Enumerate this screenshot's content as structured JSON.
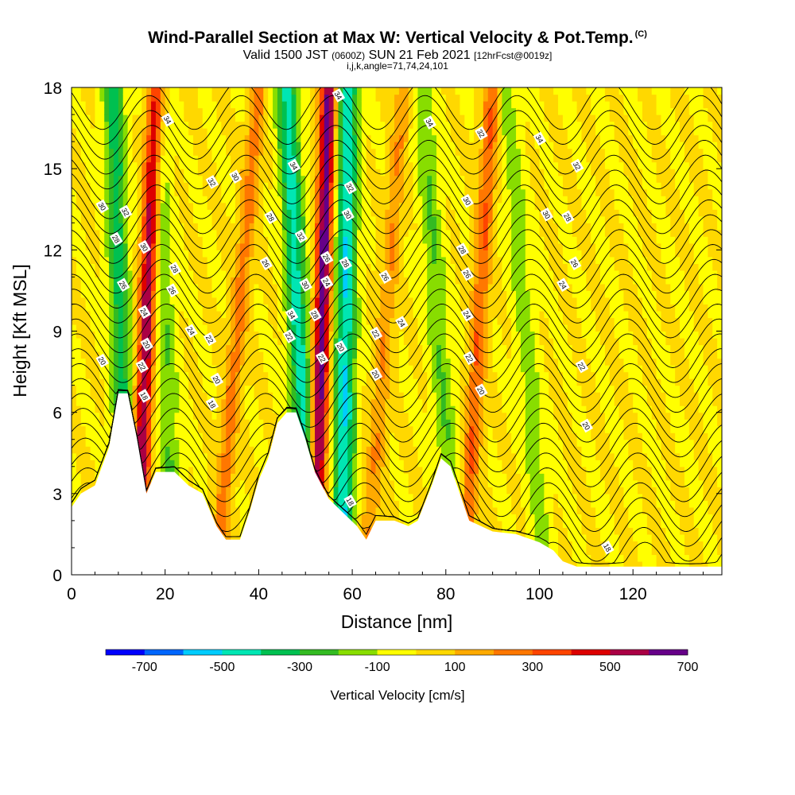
{
  "title": "Wind-Parallel Section at Max W: Vertical Velocity & Pot.Temp.",
  "title_mark": "(C)",
  "subtitle": {
    "valid": "Valid 1500 JST",
    "utc": "(0600Z)",
    "date": "SUN 21 Feb 2021",
    "fcst": "[12hrFcst@0019z]"
  },
  "params": "i,j,k,angle=71,74,24,101",
  "chart_data": {
    "type": "heatmap",
    "xlabel": "Distance [nm]",
    "ylabel": "Height [Kft MSL]",
    "xlim": [
      0,
      139
    ],
    "ylim": [
      0,
      18
    ],
    "x_ticks": [
      "0",
      "20",
      "40",
      "60",
      "80",
      "100",
      "120"
    ],
    "y_ticks": [
      "0",
      "3",
      "6",
      "9",
      "12",
      "15",
      "18"
    ],
    "colorbar": {
      "label": "Vertical Velocity [cm/s]",
      "tick_labels": [
        "-700",
        "-500",
        "-300",
        "-100",
        "100",
        "300",
        "500",
        "700"
      ],
      "tick_values": [
        -700,
        -500,
        -300,
        -100,
        100,
        300,
        500,
        700
      ],
      "colors": [
        "#0000ff",
        "#0066ff",
        "#00ccff",
        "#00e6b3",
        "#00c050",
        "#33bb22",
        "#88dd00",
        "#ffff00",
        "#ffd800",
        "#ffaa00",
        "#ff7700",
        "#ff4400",
        "#dd0000",
        "#aa0044",
        "#660088"
      ]
    },
    "terrain_height_kft": [
      [
        0,
        2.5
      ],
      [
        2,
        3.0
      ],
      [
        5,
        3.3
      ],
      [
        8,
        4.7
      ],
      [
        10,
        6.7
      ],
      [
        12,
        6.7
      ],
      [
        14,
        5.0
      ],
      [
        16,
        3.0
      ],
      [
        18,
        3.8
      ],
      [
        22,
        3.8
      ],
      [
        25,
        3.3
      ],
      [
        28,
        3.0
      ],
      [
        31,
        1.8
      ],
      [
        33,
        1.3
      ],
      [
        36,
        1.3
      ],
      [
        38,
        2.3
      ],
      [
        40,
        3.5
      ],
      [
        42,
        4.3
      ],
      [
        44,
        5.6
      ],
      [
        46,
        6.0
      ],
      [
        48,
        6.0
      ],
      [
        50,
        5.0
      ],
      [
        52,
        3.8
      ],
      [
        55,
        2.8
      ],
      [
        58,
        2.3
      ],
      [
        61,
        1.8
      ],
      [
        63,
        1.3
      ],
      [
        65,
        2.0
      ],
      [
        69,
        2.0
      ],
      [
        72,
        1.8
      ],
      [
        74,
        2.0
      ],
      [
        77,
        3.3
      ],
      [
        79,
        4.3
      ],
      [
        81,
        4.0
      ],
      [
        83,
        3.0
      ],
      [
        85,
        2.0
      ],
      [
        90,
        1.6
      ],
      [
        95,
        1.5
      ],
      [
        100,
        1.2
      ],
      [
        103,
        0.9
      ],
      [
        105,
        0.5
      ],
      [
        108,
        0.3
      ],
      [
        139,
        0.3
      ]
    ],
    "updraft_bands": [
      {
        "x_bottom": 14,
        "x_top": 18,
        "peak": 600
      },
      {
        "x_bottom": 31,
        "x_top": 40,
        "peak": 250
      },
      {
        "x_bottom": 52,
        "x_top": 55,
        "peak": 650
      },
      {
        "x_bottom": 63,
        "x_top": 71,
        "peak": 200
      },
      {
        "x_bottom": 84,
        "x_top": 90,
        "peak": 300
      }
    ],
    "downdraft_bands": [
      {
        "x_bottom": 12,
        "x_top": 9,
        "peak": -350
      },
      {
        "x_bottom": 22,
        "x_top": 18,
        "peak": -200
      },
      {
        "x_bottom": 51,
        "x_top": 46,
        "peak": -450
      },
      {
        "x_bottom": 58,
        "x_top": 59,
        "peak": -500
      },
      {
        "x_bottom": 82,
        "x_top": 75,
        "peak": -200
      },
      {
        "x_bottom": 101,
        "x_top": 93,
        "peak": -150
      }
    ],
    "theta_contour_labels": [
      {
        "text": "34",
        "x": 20.5,
        "y": 16.8
      },
      {
        "text": "32",
        "x": 30,
        "y": 14.5
      },
      {
        "text": "30",
        "x": 35,
        "y": 14.7
      },
      {
        "text": "30",
        "x": 6.5,
        "y": 13.6
      },
      {
        "text": "32",
        "x": 11.5,
        "y": 13.4
      },
      {
        "text": "28",
        "x": 9.5,
        "y": 12.4
      },
      {
        "text": "30",
        "x": 15.5,
        "y": 12.1
      },
      {
        "text": "26",
        "x": 11,
        "y": 10.7
      },
      {
        "text": "28",
        "x": 22,
        "y": 11.3
      },
      {
        "text": "26",
        "x": 21.5,
        "y": 10.5
      },
      {
        "text": "24",
        "x": 15.5,
        "y": 9.7
      },
      {
        "text": "24",
        "x": 25.5,
        "y": 9.0
      },
      {
        "text": "20",
        "x": 16,
        "y": 8.5
      },
      {
        "text": "22",
        "x": 29.5,
        "y": 8.7
      },
      {
        "text": "20",
        "x": 6.5,
        "y": 7.9
      },
      {
        "text": "22",
        "x": 15,
        "y": 7.7
      },
      {
        "text": "20",
        "x": 31,
        "y": 7.2
      },
      {
        "text": "18",
        "x": 15.5,
        "y": 6.6
      },
      {
        "text": "18",
        "x": 30,
        "y": 6.3
      },
      {
        "text": "28",
        "x": 42.5,
        "y": 13.2
      },
      {
        "text": "26",
        "x": 41.5,
        "y": 11.5
      },
      {
        "text": "34",
        "x": 47.5,
        "y": 15.1
      },
      {
        "text": "32",
        "x": 49,
        "y": 12.5
      },
      {
        "text": "30",
        "x": 50,
        "y": 10.7
      },
      {
        "text": "34",
        "x": 47,
        "y": 9.6
      },
      {
        "text": "22",
        "x": 46.5,
        "y": 8.8
      },
      {
        "text": "28",
        "x": 52,
        "y": 9.6
      },
      {
        "text": "22",
        "x": 53.5,
        "y": 8.0
      },
      {
        "text": "34",
        "x": 57,
        "y": 17.7
      },
      {
        "text": "32",
        "x": 59.5,
        "y": 14.3
      },
      {
        "text": "30",
        "x": 59,
        "y": 13.3
      },
      {
        "text": "28",
        "x": 58.5,
        "y": 11.5
      },
      {
        "text": "26",
        "x": 54.5,
        "y": 11.7
      },
      {
        "text": "24",
        "x": 54.5,
        "y": 10.8
      },
      {
        "text": "20",
        "x": 57.5,
        "y": 8.4
      },
      {
        "text": "18",
        "x": 59.5,
        "y": 2.7
      },
      {
        "text": "26",
        "x": 67,
        "y": 11.0
      },
      {
        "text": "24",
        "x": 70.5,
        "y": 9.3
      },
      {
        "text": "22",
        "x": 65,
        "y": 8.9
      },
      {
        "text": "20",
        "x": 65,
        "y": 7.4
      },
      {
        "text": "34",
        "x": 76.5,
        "y": 16.7
      },
      {
        "text": "32",
        "x": 87.5,
        "y": 16.3
      },
      {
        "text": "30",
        "x": 84.5,
        "y": 13.8
      },
      {
        "text": "28",
        "x": 83.5,
        "y": 12.0
      },
      {
        "text": "26",
        "x": 84.5,
        "y": 11.1
      },
      {
        "text": "24",
        "x": 84.5,
        "y": 9.6
      },
      {
        "text": "22",
        "x": 85,
        "y": 8.0
      },
      {
        "text": "20",
        "x": 87.5,
        "y": 6.8
      },
      {
        "text": "34",
        "x": 100,
        "y": 16.1
      },
      {
        "text": "32",
        "x": 108,
        "y": 15.1
      },
      {
        "text": "30",
        "x": 101.5,
        "y": 13.3
      },
      {
        "text": "28",
        "x": 106,
        "y": 13.2
      },
      {
        "text": "26",
        "x": 107.5,
        "y": 11.5
      },
      {
        "text": "24",
        "x": 105,
        "y": 10.7
      },
      {
        "text": "22",
        "x": 109,
        "y": 7.7
      },
      {
        "text": "20",
        "x": 110,
        "y": 5.5
      },
      {
        "text": "18",
        "x": 114.5,
        "y": 1.0
      }
    ]
  }
}
